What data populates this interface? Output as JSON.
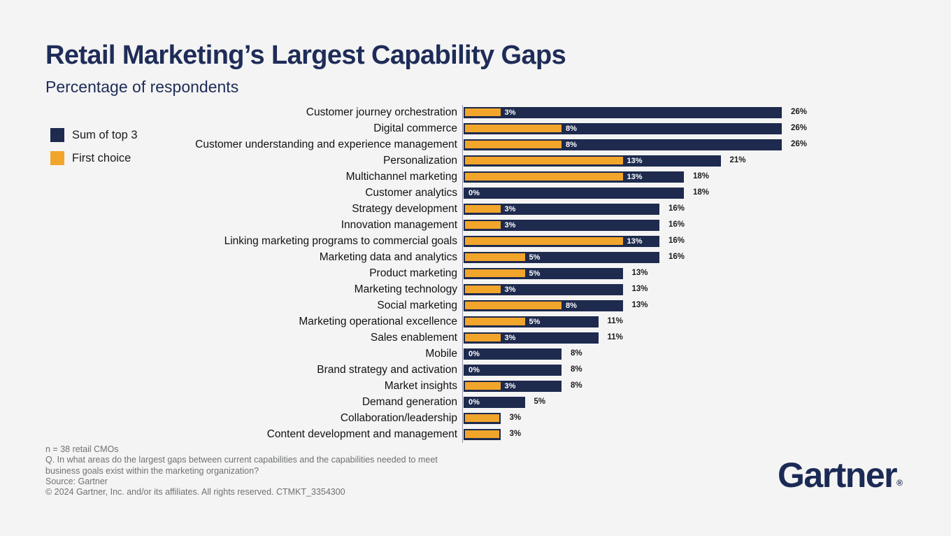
{
  "header": {
    "title": "Retail Marketing’s Largest Capability Gaps",
    "subtitle": "Percentage of respondents"
  },
  "legend": [
    {
      "label": "Sum of top 3",
      "color": "#1e2a4e"
    },
    {
      "label": "First choice",
      "color": "#f2a52b"
    }
  ],
  "chart_data": {
    "type": "bar",
    "orientation": "horizontal",
    "title": "Retail Marketing’s Largest Capability Gaps",
    "subtitle": "Percentage of respondents",
    "value_suffix": "%",
    "xlim": [
      0,
      28
    ],
    "grid": false,
    "legend_position": "left",
    "categories": [
      "Customer journey orchestration",
      "Digital commerce",
      "Customer understanding and experience management",
      "Personalization",
      "Multichannel marketing",
      "Customer analytics",
      "Strategy development",
      "Innovation management",
      "Linking marketing programs to commercial goals",
      "Marketing data and analytics",
      "Product marketing",
      "Marketing technology",
      "Social marketing",
      "Marketing operational excellence",
      "Sales enablement",
      "Mobile",
      "Brand strategy and activation",
      "Market insights",
      "Demand generation",
      "Collaboration/leadership",
      "Content development and management"
    ],
    "series": [
      {
        "name": "Sum of top 3",
        "color": "#1e2a4e",
        "values": [
          26,
          26,
          26,
          21,
          18,
          18,
          16,
          16,
          16,
          16,
          13,
          13,
          13,
          11,
          11,
          8,
          8,
          8,
          5,
          3,
          3
        ]
      },
      {
        "name": "First choice",
        "color": "#f2a52b",
        "values": [
          3,
          8,
          8,
          13,
          13,
          0,
          3,
          3,
          13,
          5,
          5,
          3,
          8,
          5,
          3,
          0,
          0,
          3,
          0,
          3,
          3
        ]
      }
    ]
  },
  "footer": {
    "n_line": "n = 38 retail CMOs",
    "q_line": "Q. In what areas do the largest gaps between current capabilities and the capabilities needed to meet business goals exist within the marketing organization?",
    "source_line": "Source: Gartner",
    "copyright_line": "© 2024 Gartner, Inc. and/or its affiliates. All rights reserved. CTMKT_3354300"
  },
  "logo": {
    "text": "Gartner",
    "registered": "®"
  }
}
